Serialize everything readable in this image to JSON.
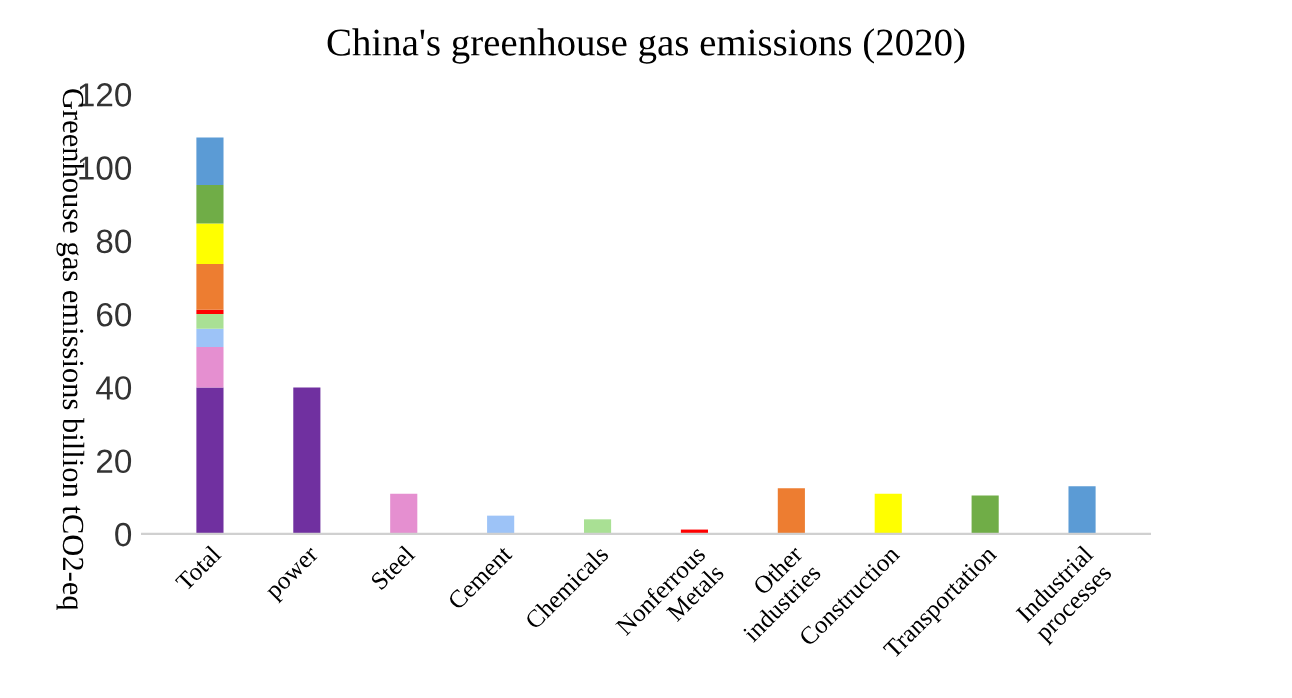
{
  "chart_data": {
    "type": "bar",
    "title": "China's greenhouse gas emissions (2020)",
    "ylabel": "Greenhouse gas emissions billion tCO2-eq",
    "stacked": true,
    "categories": [
      "Total",
      "power",
      "Steel",
      "Cement",
      "Chemicals",
      "Nonferrous\nMetals",
      "Other\nindustries",
      "Construction",
      "Transportation",
      "Industrial\nprocesses"
    ],
    "series": [
      {
        "color": "#7030a0",
        "values": [
          40,
          40,
          null,
          null,
          null,
          null,
          null,
          null,
          null,
          null
        ]
      },
      {
        "color": "#e58fd0",
        "values": [
          11,
          null,
          11,
          null,
          null,
          null,
          null,
          null,
          null,
          null
        ]
      },
      {
        "color": "#9dc3f7",
        "values": [
          5,
          null,
          null,
          5,
          null,
          null,
          null,
          null,
          null,
          null
        ]
      },
      {
        "color": "#a9e094",
        "values": [
          4,
          null,
          null,
          null,
          4,
          null,
          null,
          null,
          null,
          null
        ]
      },
      {
        "color": "#ff0000",
        "values": [
          1.2,
          null,
          null,
          null,
          null,
          1.2,
          null,
          null,
          null,
          null
        ]
      },
      {
        "color": "#ed7d31",
        "values": [
          12.5,
          null,
          null,
          null,
          null,
          null,
          12.5,
          null,
          null,
          null
        ]
      },
      {
        "color": "#ffff00",
        "values": [
          11,
          null,
          null,
          null,
          null,
          null,
          null,
          11,
          null,
          null
        ]
      },
      {
        "color": "#70ad47",
        "values": [
          10.5,
          null,
          null,
          null,
          null,
          null,
          null,
          null,
          10.5,
          null
        ]
      },
      {
        "color": "#5b9bd5",
        "values": [
          13,
          null,
          null,
          null,
          null,
          null,
          null,
          null,
          null,
          13
        ]
      }
    ],
    "ylim": [
      0,
      120
    ],
    "yticks": [
      0,
      20,
      40,
      60,
      80,
      100,
      120
    ],
    "grid": false,
    "legend": false
  }
}
